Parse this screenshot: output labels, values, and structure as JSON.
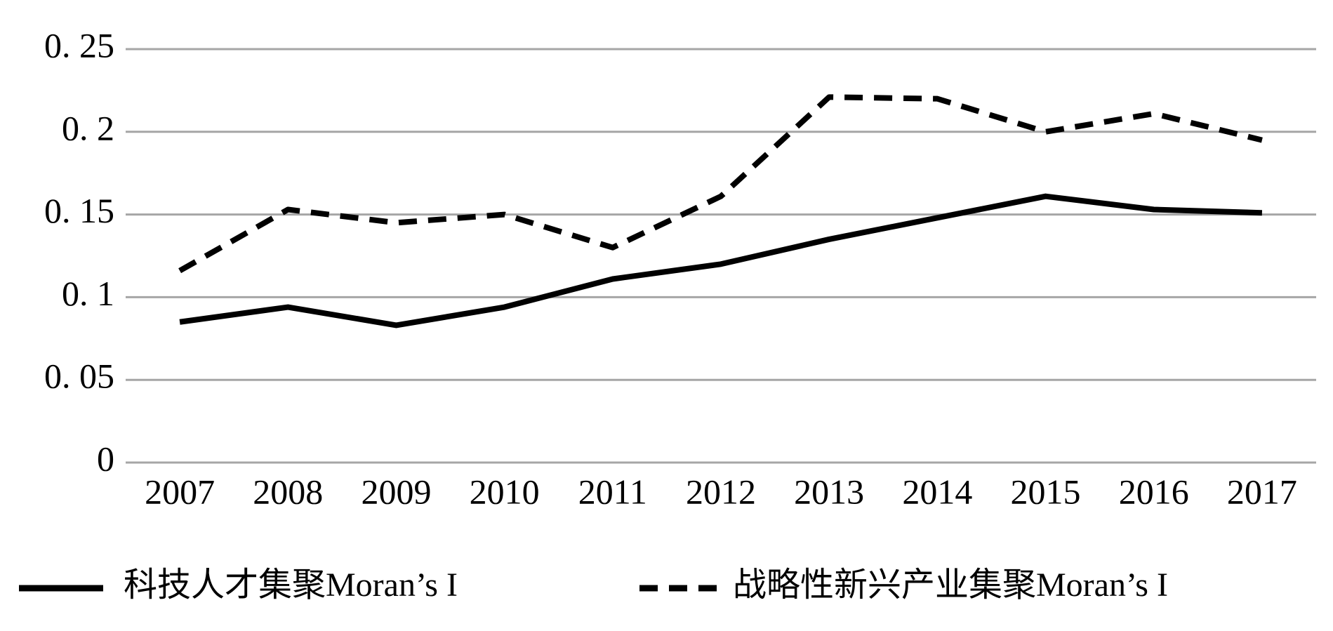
{
  "chart_data": {
    "type": "line",
    "categories": [
      "2007",
      "2008",
      "2009",
      "2010",
      "2011",
      "2012",
      "2013",
      "2014",
      "2015",
      "2016",
      "2017"
    ],
    "series": [
      {
        "name": "科技人才集聚Moran’s I",
        "color": "#000000",
        "dashed": false,
        "values": [
          0.085,
          0.094,
          0.083,
          0.094,
          0.111,
          0.12,
          0.135,
          0.148,
          0.161,
          0.153,
          0.151
        ]
      },
      {
        "name": "战略性新兴产业集聚Moran’s I",
        "color": "#000000",
        "dashed": true,
        "values": [
          0.116,
          0.153,
          0.145,
          0.15,
          0.13,
          0.161,
          0.221,
          0.22,
          0.2,
          0.211,
          0.195
        ]
      }
    ],
    "ylim": [
      0,
      0.25
    ],
    "yticks": [
      0,
      {
        "value": 0.05,
        "label": "0. 05"
      },
      {
        "value": 0.1,
        "label": "0. 1"
      },
      {
        "value": 0.15,
        "label": "0. 15"
      },
      {
        "value": 0.2,
        "label": "0. 2"
      },
      {
        "value": 0.25,
        "label": "0. 25"
      }
    ],
    "grid": true,
    "legend": "bottom"
  }
}
